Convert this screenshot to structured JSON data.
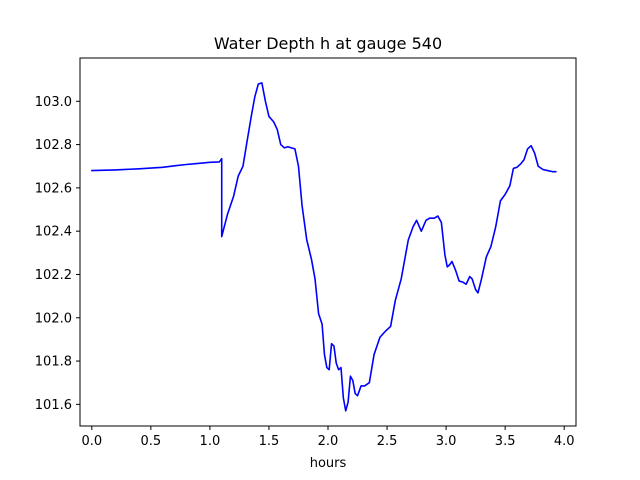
{
  "chart_data": {
    "type": "line",
    "title": "Water Depth h at gauge 540",
    "xlabel": "hours",
    "ylabel": "",
    "xlim": [
      -0.1,
      4.1
    ],
    "ylim": [
      101.5,
      103.2
    ],
    "x_ticks": [
      0.0,
      0.5,
      1.0,
      1.5,
      2.0,
      2.5,
      3.0,
      3.5,
      4.0
    ],
    "x_tick_labels": [
      "0.0",
      "0.5",
      "1.0",
      "1.5",
      "2.0",
      "2.5",
      "3.0",
      "3.5",
      "4.0"
    ],
    "y_ticks": [
      101.6,
      101.8,
      102.0,
      102.2,
      102.4,
      102.6,
      102.8,
      103.0
    ],
    "y_tick_labels": [
      "101.6",
      "101.8",
      "102.0",
      "102.2",
      "102.4",
      "102.6",
      "102.8",
      "103.0"
    ],
    "grid": false,
    "series": [
      {
        "color": "#0000ff",
        "points": [
          [
            0.0,
            102.68
          ],
          [
            0.2,
            102.683
          ],
          [
            0.4,
            102.688
          ],
          [
            0.6,
            102.695
          ],
          [
            0.7,
            102.702
          ],
          [
            0.8,
            102.708
          ],
          [
            0.9,
            102.713
          ],
          [
            1.0,
            102.718
          ],
          [
            1.08,
            102.72
          ],
          [
            1.1,
            102.735
          ],
          [
            1.1,
            102.375
          ],
          [
            1.15,
            102.48
          ],
          [
            1.2,
            102.56
          ],
          [
            1.24,
            102.655
          ],
          [
            1.28,
            102.7
          ],
          [
            1.31,
            102.8
          ],
          [
            1.35,
            102.93
          ],
          [
            1.38,
            103.02
          ],
          [
            1.41,
            103.08
          ],
          [
            1.44,
            103.085
          ],
          [
            1.47,
            103.0
          ],
          [
            1.5,
            102.93
          ],
          [
            1.54,
            102.905
          ],
          [
            1.57,
            102.87
          ],
          [
            1.6,
            102.8
          ],
          [
            1.63,
            102.785
          ],
          [
            1.66,
            102.79
          ],
          [
            1.69,
            102.785
          ],
          [
            1.72,
            102.78
          ],
          [
            1.75,
            102.7
          ],
          [
            1.78,
            102.52
          ],
          [
            1.82,
            102.36
          ],
          [
            1.86,
            102.27
          ],
          [
            1.89,
            102.18
          ],
          [
            1.92,
            102.02
          ],
          [
            1.95,
            101.97
          ],
          [
            1.97,
            101.83
          ],
          [
            1.99,
            101.77
          ],
          [
            2.01,
            101.76
          ],
          [
            2.03,
            101.88
          ],
          [
            2.05,
            101.87
          ],
          [
            2.07,
            101.79
          ],
          [
            2.09,
            101.76
          ],
          [
            2.11,
            101.77
          ],
          [
            2.13,
            101.63
          ],
          [
            2.15,
            101.57
          ],
          [
            2.17,
            101.61
          ],
          [
            2.19,
            101.73
          ],
          [
            2.21,
            101.71
          ],
          [
            2.23,
            101.65
          ],
          [
            2.25,
            101.64
          ],
          [
            2.28,
            101.685
          ],
          [
            2.31,
            101.685
          ],
          [
            2.35,
            101.7
          ],
          [
            2.39,
            101.83
          ],
          [
            2.44,
            101.91
          ],
          [
            2.49,
            101.94
          ],
          [
            2.53,
            101.96
          ],
          [
            2.57,
            102.08
          ],
          [
            2.62,
            102.18
          ],
          [
            2.68,
            102.36
          ],
          [
            2.72,
            102.42
          ],
          [
            2.75,
            102.45
          ],
          [
            2.79,
            102.4
          ],
          [
            2.83,
            102.45
          ],
          [
            2.86,
            102.46
          ],
          [
            2.9,
            102.46
          ],
          [
            2.93,
            102.47
          ],
          [
            2.96,
            102.44
          ],
          [
            2.99,
            102.29
          ],
          [
            3.01,
            102.235
          ],
          [
            3.03,
            102.245
          ],
          [
            3.05,
            102.26
          ],
          [
            3.08,
            102.22
          ],
          [
            3.11,
            102.17
          ],
          [
            3.14,
            102.165
          ],
          [
            3.17,
            102.155
          ],
          [
            3.2,
            102.19
          ],
          [
            3.22,
            102.18
          ],
          [
            3.25,
            102.13
          ],
          [
            3.27,
            102.115
          ],
          [
            3.3,
            102.18
          ],
          [
            3.34,
            102.28
          ],
          [
            3.38,
            102.33
          ],
          [
            3.42,
            102.42
          ],
          [
            3.46,
            102.54
          ],
          [
            3.5,
            102.57
          ],
          [
            3.54,
            102.61
          ],
          [
            3.57,
            102.69
          ],
          [
            3.6,
            102.695
          ],
          [
            3.63,
            102.71
          ],
          [
            3.66,
            102.73
          ],
          [
            3.69,
            102.78
          ],
          [
            3.72,
            102.795
          ],
          [
            3.75,
            102.76
          ],
          [
            3.78,
            102.7
          ],
          [
            3.82,
            102.685
          ],
          [
            3.86,
            102.68
          ],
          [
            3.9,
            102.675
          ],
          [
            3.93,
            102.675
          ]
        ]
      }
    ]
  }
}
